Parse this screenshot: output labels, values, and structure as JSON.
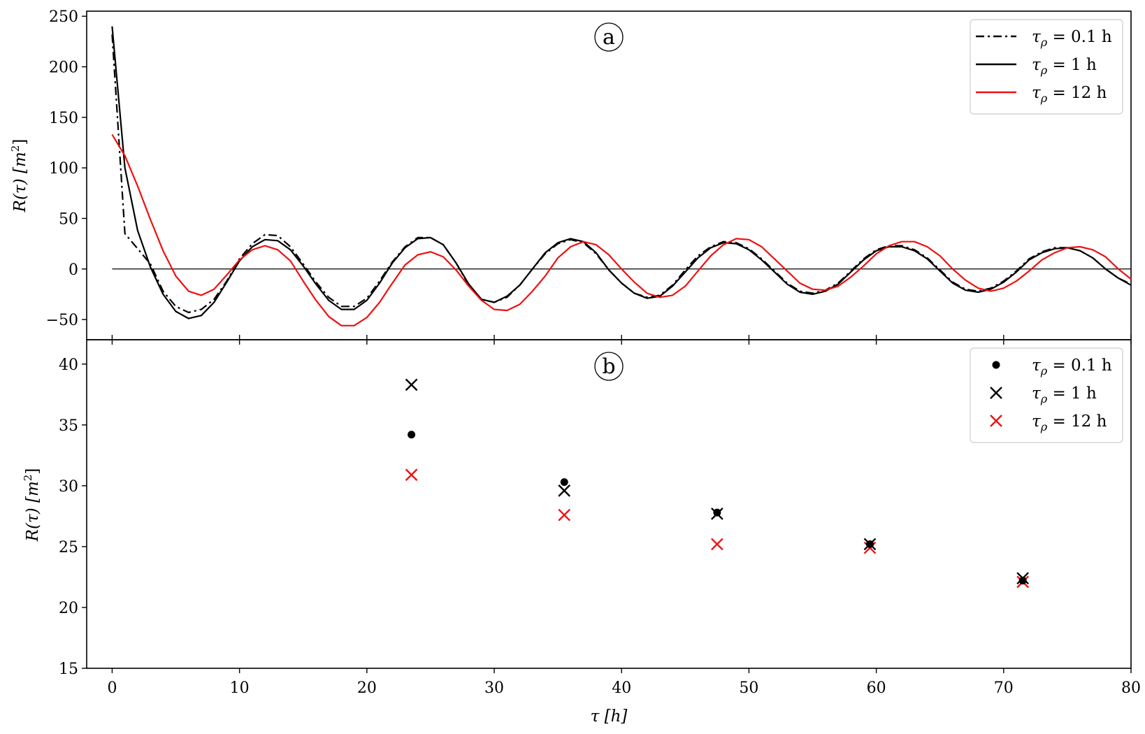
{
  "chart_data": [
    {
      "panel": "a",
      "type": "line",
      "xlabel": "τ [h]",
      "ylabel": "R(τ) [m²]",
      "xlim": [
        -2,
        80
      ],
      "ylim": [
        -70,
        255
      ],
      "xticks": [
        0,
        10,
        20,
        30,
        40,
        50,
        60,
        70,
        80
      ],
      "yticks": [
        -50,
        0,
        50,
        100,
        150,
        200,
        250
      ],
      "ytick_labels": [
        "−50",
        "0",
        "50",
        "100",
        "150",
        "200",
        "250"
      ],
      "xtick_labels_shown": false,
      "reference_line_y": 0,
      "legend_position": "top-right",
      "series": [
        {
          "name": "τρ = 0.1 h",
          "color": "#000000",
          "linestyle": "dashdot",
          "x": [
            0,
            1,
            2,
            3,
            4,
            5,
            6,
            7,
            8,
            9,
            10,
            11,
            12,
            13,
            14,
            15,
            16,
            17,
            18,
            19,
            20,
            21,
            22,
            23,
            24,
            25,
            26,
            27,
            28,
            29,
            30,
            31,
            32,
            33,
            34,
            35,
            36,
            37,
            38,
            39,
            40,
            41,
            42,
            43,
            44,
            45,
            46,
            47,
            48,
            49,
            50,
            51,
            52,
            53,
            54,
            55,
            56,
            57,
            58,
            59,
            60,
            61,
            62,
            63,
            64,
            65,
            66,
            67,
            68,
            69,
            70,
            71,
            72,
            73,
            74,
            75,
            76,
            77,
            78,
            79,
            80
          ],
          "y": [
            232,
            35,
            20,
            5,
            -22,
            -37,
            -43,
            -40,
            -30,
            -12,
            10,
            25,
            34,
            33,
            22,
            5,
            -13,
            -28,
            -37,
            -37,
            -29,
            -12,
            7,
            22,
            31,
            31,
            24,
            6,
            -16,
            -30,
            -33,
            -28,
            -16,
            0,
            15,
            25,
            29,
            26,
            15,
            -1,
            -14,
            -24,
            -28,
            -26,
            -16,
            -1,
            13,
            22,
            27,
            26,
            20,
            10,
            -2,
            -14,
            -22,
            -24,
            -21,
            -14,
            -2,
            10,
            19,
            23,
            23,
            19,
            11,
            -1,
            -13,
            -20,
            -22,
            -19,
            -12,
            -2,
            10,
            17,
            21,
            21,
            18,
            11,
            0,
            -9,
            -15
          ]
        },
        {
          "name": "τρ = 1 h",
          "color": "#000000",
          "linestyle": "solid",
          "x": [
            0,
            1,
            2,
            3,
            4,
            5,
            6,
            7,
            8,
            9,
            10,
            11,
            12,
            13,
            14,
            15,
            16,
            17,
            18,
            19,
            20,
            21,
            22,
            23,
            24,
            25,
            26,
            27,
            28,
            29,
            30,
            31,
            32,
            33,
            34,
            35,
            36,
            37,
            38,
            39,
            40,
            41,
            42,
            43,
            44,
            45,
            46,
            47,
            48,
            49,
            50,
            51,
            52,
            53,
            54,
            55,
            56,
            57,
            58,
            59,
            60,
            61,
            62,
            63,
            64,
            65,
            66,
            67,
            68,
            69,
            70,
            71,
            72,
            73,
            74,
            75,
            76,
            77,
            78,
            79,
            80
          ],
          "y": [
            240,
            100,
            38,
            2,
            -25,
            -42,
            -49,
            -46,
            -33,
            -13,
            8,
            22,
            29,
            28,
            19,
            3,
            -15,
            -31,
            -40,
            -40,
            -31,
            -14,
            6,
            21,
            30,
            31,
            24,
            6,
            -15,
            -30,
            -33,
            -27,
            -16,
            0,
            16,
            26,
            30,
            27,
            16,
            -1,
            -14,
            -24,
            -29,
            -27,
            -17,
            -3,
            11,
            21,
            26,
            25,
            19,
            9,
            -3,
            -15,
            -23,
            -25,
            -22,
            -15,
            -3,
            9,
            18,
            22,
            22,
            18,
            10,
            -2,
            -14,
            -21,
            -23,
            -20,
            -13,
            -3,
            9,
            16,
            20,
            21,
            18,
            11,
            0,
            -9,
            -16
          ]
        },
        {
          "name": "τρ = 12 h",
          "color": "#ee1111",
          "linestyle": "solid",
          "x": [
            0,
            1,
            2,
            3,
            4,
            5,
            6,
            7,
            8,
            9,
            10,
            11,
            12,
            13,
            14,
            15,
            16,
            17,
            18,
            19,
            20,
            21,
            22,
            23,
            24,
            25,
            26,
            27,
            28,
            29,
            30,
            31,
            32,
            33,
            34,
            35,
            36,
            37,
            38,
            39,
            40,
            41,
            42,
            43,
            44,
            45,
            46,
            47,
            48,
            49,
            50,
            51,
            52,
            53,
            54,
            55,
            56,
            57,
            58,
            59,
            60,
            61,
            62,
            63,
            64,
            65,
            66,
            67,
            68,
            69,
            70,
            71,
            72,
            73,
            74,
            75,
            76,
            77,
            78,
            79,
            80
          ],
          "y": [
            133,
            112,
            82,
            49,
            18,
            -7,
            -22,
            -26,
            -20,
            -6,
            9,
            19,
            23,
            19,
            8,
            -12,
            -31,
            -47,
            -56,
            -56,
            -48,
            -33,
            -14,
            4,
            14,
            17,
            12,
            -1,
            -17,
            -31,
            -40,
            -41,
            -35,
            -22,
            -7,
            11,
            22,
            27,
            24,
            14,
            0,
            -13,
            -24,
            -28,
            -26,
            -17,
            -2,
            13,
            24,
            30,
            29,
            22,
            10,
            -2,
            -14,
            -20,
            -21,
            -17,
            -8,
            3,
            15,
            23,
            27,
            27,
            22,
            13,
            0,
            -11,
            -19,
            -22,
            -19,
            -12,
            -2,
            9,
            16,
            21,
            22,
            19,
            12,
            0,
            -10
          ]
        }
      ]
    },
    {
      "panel": "b",
      "type": "scatter",
      "xlabel": "τ [h]",
      "ylabel": "R(τ) [m²]",
      "xlim": [
        -2,
        80
      ],
      "ylim": [
        15,
        42
      ],
      "xticks": [
        0,
        10,
        20,
        30,
        40,
        50,
        60,
        70,
        80
      ],
      "yticks": [
        15,
        20,
        25,
        30,
        35,
        40
      ],
      "legend_position": "top-right",
      "series": [
        {
          "name": "τρ = 0.1 h",
          "color": "#000000",
          "marker": "dot",
          "x": [
            23.5,
            35.5,
            47.5,
            59.5,
            71.5
          ],
          "y": [
            34.2,
            30.3,
            27.8,
            25.2,
            22.2
          ]
        },
        {
          "name": "τρ = 1 h",
          "color": "#000000",
          "marker": "x",
          "x": [
            23.5,
            35.5,
            47.5,
            59.5,
            71.5
          ],
          "y": [
            38.3,
            29.6,
            27.7,
            25.2,
            22.4
          ]
        },
        {
          "name": "τρ = 12 h",
          "color": "#ee1111",
          "marker": "x",
          "x": [
            23.5,
            35.5,
            47.5,
            59.5,
            71.5
          ],
          "y": [
            30.9,
            27.6,
            25.2,
            24.9,
            22.1
          ]
        }
      ]
    }
  ],
  "panels": {
    "a": {
      "tag": "a"
    },
    "b": {
      "tag": "b"
    }
  },
  "legend_a": [
    {
      "prefix": "τ",
      "sub": "ρ",
      "suffix": " = 0.1 h"
    },
    {
      "prefix": "τ",
      "sub": "ρ",
      "suffix": " = 1 h"
    },
    {
      "prefix": "τ",
      "sub": "ρ",
      "suffix": " = 12 h"
    }
  ],
  "legend_b": [
    {
      "prefix": "τ",
      "sub": "ρ",
      "suffix": " = 0.1 h"
    },
    {
      "prefix": "τ",
      "sub": "ρ",
      "suffix": " = 1 h"
    },
    {
      "prefix": "τ",
      "sub": "ρ",
      "suffix": " = 12 h"
    }
  ],
  "labels": {
    "ylabel_a_main": "R(τ) [m",
    "ylabel_a_sup": "2",
    "ylabel_a_end": "]",
    "ylabel_b_main": "R(τ) [m",
    "ylabel_b_sup": "2",
    "ylabel_b_end": "]",
    "xlabel": "τ [h]"
  }
}
